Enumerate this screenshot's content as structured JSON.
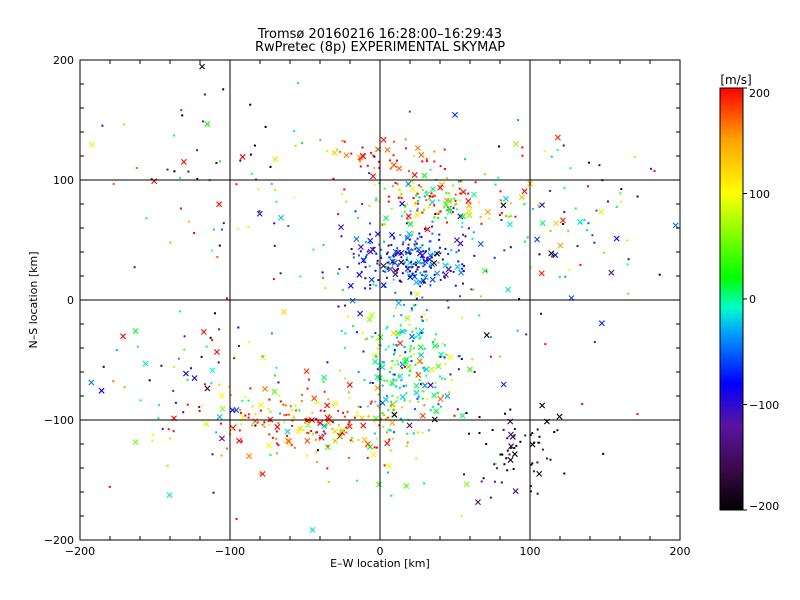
{
  "chart_data": {
    "type": "scatter",
    "title": "Tromsø 20160216 16:28:00–16:29:43",
    "subtitle": "RwPretec (8p) EXPERIMENTAL SKYMAP",
    "xlabel": "E–W location [km]",
    "ylabel": "N–S location [km]",
    "xlim": [
      -200,
      200
    ],
    "ylim": [
      -200,
      200
    ],
    "xticks": [
      -200,
      -100,
      0,
      100,
      200
    ],
    "yticks": [
      -200,
      -100,
      0,
      100,
      200
    ],
    "xtick_labels": [
      "−200",
      "−100",
      "0",
      "100",
      "200"
    ],
    "ytick_labels": [
      "−200",
      "−100",
      "0",
      "100",
      "200"
    ],
    "grid": true,
    "colorbar": {
      "label": "[m/s]",
      "range": [
        -200,
        200
      ],
      "ticks": [
        200,
        100,
        0,
        -100,
        -200
      ],
      "tick_labels": [
        "200",
        "100",
        "0",
        "−100",
        "−200"
      ],
      "colormap": [
        "#000000",
        "#3c0a4b",
        "#5a14a0",
        "#0000ff",
        "#00a0ff",
        "#00ffc8",
        "#00ff00",
        "#ffff00",
        "#ffa000",
        "#ff0000"
      ]
    },
    "markers": {
      "large": "cross",
      "small": "dot"
    },
    "clusters": [
      {
        "name": "north-blue",
        "cx": 18,
        "cy": 33,
        "sx": 22,
        "sy": 14,
        "n": 260,
        "vmean": -70,
        "vsd": 50
      },
      {
        "name": "north-red",
        "cx": 35,
        "cy": 82,
        "sx": 22,
        "sy": 12,
        "n": 140,
        "vmean": 120,
        "vsd": 90
      },
      {
        "name": "north-red-top",
        "cx": 5,
        "cy": 115,
        "sx": 20,
        "sy": 10,
        "n": 50,
        "vmean": 190,
        "vsd": 25
      },
      {
        "name": "east-ne",
        "cx": 115,
        "cy": 65,
        "sx": 35,
        "sy": 30,
        "n": 90,
        "vmean": 0,
        "vsd": 150
      },
      {
        "name": "south-center",
        "cx": 15,
        "cy": -55,
        "sx": 18,
        "sy": 28,
        "n": 240,
        "vmean": 40,
        "vsd": 60
      },
      {
        "name": "south-west-red",
        "cx": -45,
        "cy": -105,
        "sx": 35,
        "sy": 15,
        "n": 200,
        "vmean": 160,
        "vsd": 60
      },
      {
        "name": "south-east-dark",
        "cx": 90,
        "cy": -125,
        "sx": 20,
        "sy": 25,
        "n": 70,
        "vmean": -180,
        "vsd": 40
      },
      {
        "name": "west-scatter",
        "cx": -120,
        "cy": -70,
        "sx": 35,
        "sy": 35,
        "n": 80,
        "vmean": 20,
        "vsd": 140
      },
      {
        "name": "north-west-sparse",
        "cx": -110,
        "cy": 110,
        "sx": 40,
        "sy": 35,
        "n": 50,
        "vmean": 0,
        "vsd": 170
      },
      {
        "name": "background",
        "cx": 0,
        "cy": 0,
        "sx": 90,
        "sy": 90,
        "n": 120,
        "vmean": 50,
        "vsd": 130
      }
    ]
  }
}
